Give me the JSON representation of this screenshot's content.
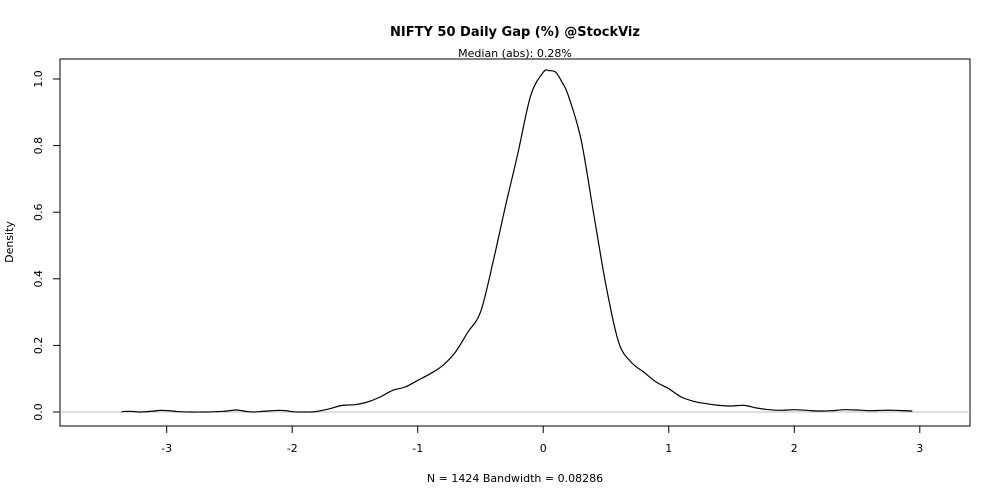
{
  "chart_data": {
    "type": "line",
    "title": "NIFTY 50 Daily Gap (%) @StockViz",
    "subtitle": "Median (abs): 0.28%",
    "xlabel": "N = 1424   Bandwidth = 0.08286",
    "ylabel": "Density",
    "xlim": [
      -3.85,
      3.4
    ],
    "ylim": [
      -0.042,
      1.06
    ],
    "x_ticks": [
      -3,
      -2,
      -1,
      0,
      1,
      2,
      3
    ],
    "y_ticks": [
      0.0,
      0.2,
      0.4,
      0.6,
      0.8,
      1.0
    ],
    "y_tick_labels": [
      "0.0",
      "0.2",
      "0.4",
      "0.6",
      "0.8",
      "1.0"
    ],
    "grid": false,
    "zero_line_color": "#bebebe",
    "line_color": "#000000",
    "series": [
      {
        "x": [
          -3.36,
          -3.3,
          -3.25,
          -3.2,
          -3.1,
          -3.05,
          -2.98,
          -2.9,
          -2.8,
          -2.7,
          -2.55,
          -2.5,
          -2.45,
          -2.4,
          -2.35,
          -2.3,
          -2.2,
          -2.1,
          -2.05,
          -2.0,
          -1.95,
          -1.9,
          -1.85,
          -1.8,
          -1.7,
          -1.6,
          -1.5,
          -1.4,
          -1.3,
          -1.2,
          -1.1,
          -1.0,
          -0.9,
          -0.8,
          -0.7,
          -0.6,
          -0.5,
          -0.4,
          -0.3,
          -0.2,
          -0.1,
          0.0,
          0.05,
          0.1,
          0.15,
          0.2,
          0.3,
          0.4,
          0.5,
          0.6,
          0.7,
          0.8,
          0.9,
          1.0,
          1.1,
          1.2,
          1.3,
          1.4,
          1.5,
          1.6,
          1.7,
          1.8,
          1.9,
          2.0,
          2.1,
          2.2,
          2.3,
          2.4,
          2.5,
          2.6,
          2.7,
          2.8,
          2.94
        ],
        "y": [
          0.001,
          0.002,
          0.001,
          0.0,
          0.003,
          0.005,
          0.004,
          0.001,
          0.0,
          0.0,
          0.002,
          0.004,
          0.006,
          0.004,
          0.001,
          0.0,
          0.003,
          0.005,
          0.004,
          0.001,
          0.0,
          0.0,
          0.0,
          0.002,
          0.01,
          0.02,
          0.022,
          0.03,
          0.045,
          0.065,
          0.075,
          0.095,
          0.115,
          0.14,
          0.18,
          0.24,
          0.3,
          0.45,
          0.62,
          0.78,
          0.95,
          1.02,
          1.025,
          1.02,
          0.99,
          0.95,
          0.82,
          0.6,
          0.38,
          0.21,
          0.15,
          0.12,
          0.09,
          0.07,
          0.045,
          0.032,
          0.025,
          0.02,
          0.018,
          0.02,
          0.012,
          0.007,
          0.005,
          0.007,
          0.005,
          0.003,
          0.004,
          0.007,
          0.006,
          0.004,
          0.005,
          0.005,
          0.003
        ]
      }
    ]
  }
}
